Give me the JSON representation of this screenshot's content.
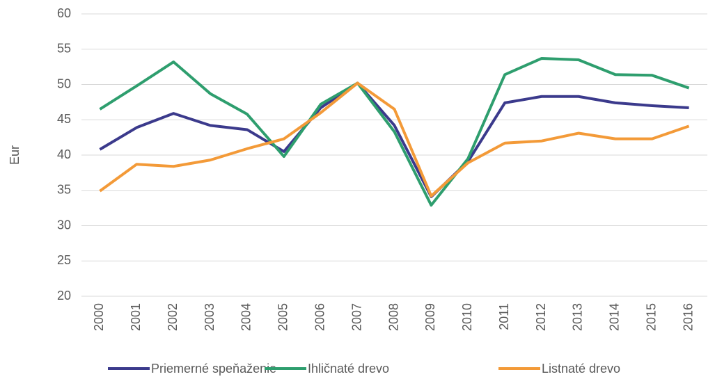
{
  "chart_data": {
    "type": "line",
    "y_label": "Eur",
    "categories": [
      "2000",
      "2001",
      "2002",
      "2003",
      "2004",
      "2005",
      "2006",
      "2007",
      "2008",
      "2009",
      "2010",
      "2011",
      "2012",
      "2013",
      "2014",
      "2015",
      "2016"
    ],
    "series": [
      {
        "name": "Priemerné speňaženie",
        "color": "#3b3a8c",
        "values": [
          40.8,
          43.9,
          45.9,
          44.2,
          43.6,
          40.5,
          46.7,
          50.2,
          44.2,
          34.1,
          39.1,
          47.4,
          48.3,
          48.3,
          47.4,
          47.0,
          46.7
        ]
      },
      {
        "name": "Ihličnaté drevo",
        "color": "#2e9e6e",
        "values": [
          46.5,
          49.8,
          53.2,
          48.7,
          45.8,
          39.8,
          47.2,
          50.2,
          43.3,
          32.9,
          39.5,
          51.4,
          53.7,
          53.5,
          51.4,
          51.3,
          49.5
        ]
      },
      {
        "name": "Listnaté drevo",
        "color": "#f39a38",
        "values": [
          34.9,
          38.7,
          38.4,
          39.3,
          40.9,
          42.3,
          46.0,
          50.2,
          46.5,
          34.2,
          38.9,
          41.7,
          42.0,
          43.1,
          42.3,
          42.3,
          44.1
        ]
      }
    ],
    "ylim": [
      20,
      60
    ],
    "yticks": [
      20,
      25,
      30,
      35,
      40,
      45,
      50,
      55,
      60
    ],
    "grid": true,
    "legend": "bottom"
  }
}
